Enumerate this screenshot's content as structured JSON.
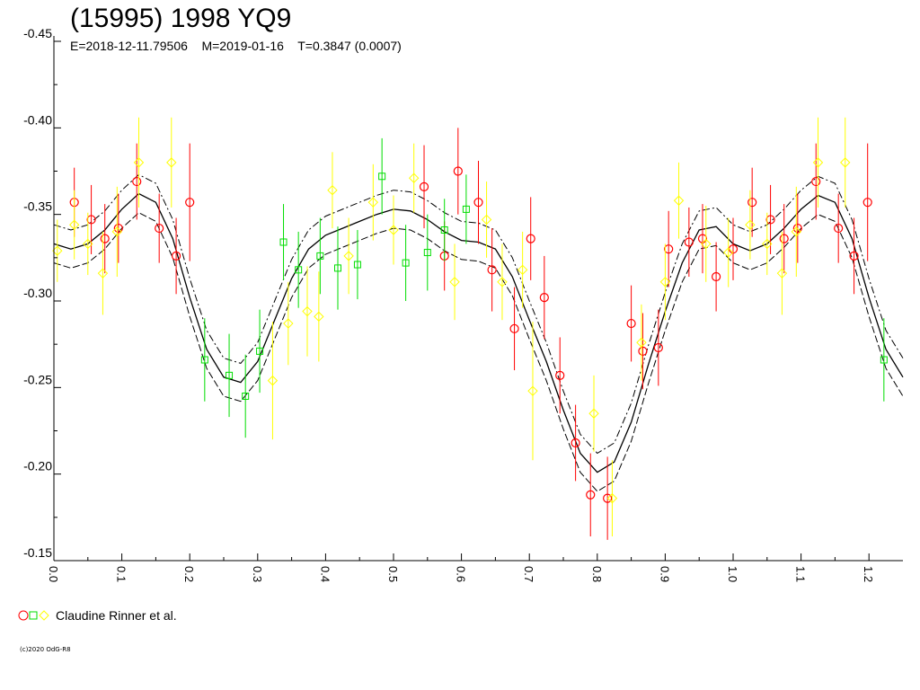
{
  "header": {
    "title": "(15995) 1998 YQ9",
    "subtitle": "E=2018-12-11.79506    M=2019-01-16    T=0.3847 (0.0007)"
  },
  "legend": {
    "label": "Claudine Rinner et al.",
    "symbols": [
      "red-circle-icon",
      "green-square-icon",
      "yellow-diamond-icon"
    ]
  },
  "footer": {
    "copyright": "(c)2020 OdG-R8"
  },
  "colors": {
    "red": "#ff0000",
    "green": "#00dd00",
    "yellow": "#ffff00",
    "axis": "#000000"
  },
  "chart_data": {
    "type": "scatter",
    "xlabel": "",
    "ylabel": "",
    "xlim": [
      0.0,
      1.25
    ],
    "ylim": [
      -0.45,
      -0.15
    ],
    "y_inverted": true,
    "x_ticks": [
      "0.0",
      "0.1",
      "0.2",
      "0.3",
      "0.4",
      "0.5",
      "0.6",
      "0.7",
      "0.8",
      "0.9",
      "1.0",
      "1.1",
      "1.2"
    ],
    "y_ticks": [
      "-0.45",
      "-0.40",
      "-0.35",
      "-0.30",
      "-0.25",
      "-0.20",
      "-0.15"
    ],
    "fit_curve": {
      "x": [
        0.0,
        0.025,
        0.05,
        0.075,
        0.1,
        0.125,
        0.15,
        0.175,
        0.2,
        0.225,
        0.25,
        0.275,
        0.3,
        0.325,
        0.35,
        0.375,
        0.4,
        0.425,
        0.45,
        0.475,
        0.5,
        0.525,
        0.55,
        0.575,
        0.6,
        0.625,
        0.65,
        0.675,
        0.7,
        0.725,
        0.75,
        0.775,
        0.8,
        0.825,
        0.85,
        0.875,
        0.9,
        0.925,
        0.95,
        0.975,
        1.0,
        1.025,
        1.05,
        1.075,
        1.1,
        1.125,
        1.15,
        1.175,
        1.2,
        1.225,
        1.25
      ],
      "y": [
        -0.333,
        -0.33,
        -0.333,
        -0.341,
        -0.353,
        -0.362,
        -0.357,
        -0.336,
        -0.302,
        -0.272,
        -0.256,
        -0.253,
        -0.265,
        -0.289,
        -0.313,
        -0.33,
        -0.338,
        -0.342,
        -0.346,
        -0.35,
        -0.353,
        -0.352,
        -0.347,
        -0.34,
        -0.335,
        -0.334,
        -0.33,
        -0.314,
        -0.289,
        -0.265,
        -0.237,
        -0.212,
        -0.201,
        -0.207,
        -0.23,
        -0.263,
        -0.294,
        -0.322,
        -0.341,
        -0.343,
        -0.333,
        -0.329,
        -0.333,
        -0.342,
        -0.353,
        -0.361,
        -0.357,
        -0.336,
        -0.302,
        -0.272,
        -0.256
      ],
      "band": 0.011
    },
    "series": [
      {
        "name": "",
        "color": "#ff0000",
        "marker": "circle",
        "points": [
          {
            "x": 0.03,
            "y": -0.357,
            "err": 0.02
          },
          {
            "x": 0.055,
            "y": -0.347,
            "err": 0.02
          },
          {
            "x": 0.075,
            "y": -0.336,
            "err": 0.02
          },
          {
            "x": 0.095,
            "y": -0.342,
            "err": 0.02
          },
          {
            "x": 0.122,
            "y": -0.369,
            "err": 0.022
          },
          {
            "x": 0.155,
            "y": -0.342,
            "err": 0.02
          },
          {
            "x": 0.18,
            "y": -0.326,
            "err": 0.022
          },
          {
            "x": 0.2,
            "y": -0.357,
            "err": 0.034
          },
          {
            "x": 0.545,
            "y": -0.366,
            "err": 0.024
          },
          {
            "x": 0.595,
            "y": -0.375,
            "err": 0.025
          },
          {
            "x": 0.575,
            "y": -0.326,
            "err": 0.02
          },
          {
            "x": 0.625,
            "y": -0.357,
            "err": 0.024
          },
          {
            "x": 0.645,
            "y": -0.318,
            "err": 0.024
          },
          {
            "x": 0.678,
            "y": -0.284,
            "err": 0.024
          },
          {
            "x": 0.702,
            "y": -0.336,
            "err": 0.024
          },
          {
            "x": 0.722,
            "y": -0.302,
            "err": 0.024
          },
          {
            "x": 0.745,
            "y": -0.257,
            "err": 0.022
          },
          {
            "x": 0.768,
            "y": -0.218,
            "err": 0.022
          },
          {
            "x": 0.79,
            "y": -0.188,
            "err": 0.024
          },
          {
            "x": 0.815,
            "y": -0.186,
            "err": 0.024
          },
          {
            "x": 0.85,
            "y": -0.287,
            "err": 0.022
          },
          {
            "x": 0.867,
            "y": -0.271,
            "err": 0.022
          },
          {
            "x": 0.89,
            "y": -0.273,
            "err": 0.022
          },
          {
            "x": 0.905,
            "y": -0.33,
            "err": 0.022
          },
          {
            "x": 0.935,
            "y": -0.334,
            "err": 0.02
          },
          {
            "x": 0.955,
            "y": -0.336,
            "err": 0.02
          },
          {
            "x": 0.975,
            "y": -0.314,
            "err": 0.02
          },
          {
            "x": 1.0,
            "y": -0.33,
            "err": 0.018
          },
          {
            "x": 1.028,
            "y": -0.357,
            "err": 0.02
          },
          {
            "x": 1.055,
            "y": -0.347,
            "err": 0.02
          },
          {
            "x": 1.075,
            "y": -0.336,
            "err": 0.02
          },
          {
            "x": 1.095,
            "y": -0.342,
            "err": 0.02
          },
          {
            "x": 1.122,
            "y": -0.369,
            "err": 0.022
          },
          {
            "x": 1.155,
            "y": -0.342,
            "err": 0.02
          },
          {
            "x": 1.178,
            "y": -0.326,
            "err": 0.022
          },
          {
            "x": 1.198,
            "y": -0.357,
            "err": 0.034
          }
        ]
      },
      {
        "name": "",
        "color": "#00dd00",
        "marker": "square",
        "points": [
          {
            "x": 0.222,
            "y": -0.266,
            "err": 0.024
          },
          {
            "x": 0.258,
            "y": -0.257,
            "err": 0.024
          },
          {
            "x": 0.282,
            "y": -0.245,
            "err": 0.024
          },
          {
            "x": 0.303,
            "y": -0.271,
            "err": 0.024
          },
          {
            "x": 0.338,
            "y": -0.334,
            "err": 0.022
          },
          {
            "x": 0.36,
            "y": -0.318,
            "err": 0.022
          },
          {
            "x": 0.392,
            "y": -0.326,
            "err": 0.022
          },
          {
            "x": 0.418,
            "y": -0.319,
            "err": 0.024
          },
          {
            "x": 0.447,
            "y": -0.321,
            "err": 0.02
          },
          {
            "x": 0.483,
            "y": -0.372,
            "err": 0.022
          },
          {
            "x": 0.518,
            "y": -0.322,
            "err": 0.022
          },
          {
            "x": 0.55,
            "y": -0.328,
            "err": 0.022
          },
          {
            "x": 0.575,
            "y": -0.341,
            "err": 0.018
          },
          {
            "x": 0.607,
            "y": -0.353,
            "err": 0.02
          },
          {
            "x": 1.222,
            "y": -0.266,
            "err": 0.024
          }
        ]
      },
      {
        "name": "",
        "color": "#ffff00",
        "marker": "diamond",
        "points": [
          {
            "x": 0.005,
            "y": -0.329,
            "err": 0.018
          },
          {
            "x": 0.03,
            "y": -0.344,
            "err": 0.02
          },
          {
            "x": 0.05,
            "y": -0.333,
            "err": 0.018
          },
          {
            "x": 0.072,
            "y": -0.316,
            "err": 0.024
          },
          {
            "x": 0.093,
            "y": -0.34,
            "err": 0.026
          },
          {
            "x": 0.125,
            "y": -0.38,
            "err": 0.026
          },
          {
            "x": 0.173,
            "y": -0.38,
            "err": 0.026
          },
          {
            "x": 0.322,
            "y": -0.254,
            "err": 0.034
          },
          {
            "x": 0.345,
            "y": -0.287,
            "err": 0.024
          },
          {
            "x": 0.373,
            "y": -0.294,
            "err": 0.026
          },
          {
            "x": 0.39,
            "y": -0.291,
            "err": 0.026
          },
          {
            "x": 0.41,
            "y": -0.364,
            "err": 0.022
          },
          {
            "x": 0.434,
            "y": -0.326,
            "err": 0.022
          },
          {
            "x": 0.47,
            "y": -0.357,
            "err": 0.022
          },
          {
            "x": 0.5,
            "y": -0.341,
            "err": 0.02
          },
          {
            "x": 0.53,
            "y": -0.371,
            "err": 0.02
          },
          {
            "x": 0.59,
            "y": -0.311,
            "err": 0.022
          },
          {
            "x": 0.637,
            "y": -0.347,
            "err": 0.022
          },
          {
            "x": 0.66,
            "y": -0.311,
            "err": 0.022
          },
          {
            "x": 0.69,
            "y": -0.318,
            "err": 0.022
          },
          {
            "x": 0.705,
            "y": -0.248,
            "err": 0.04
          },
          {
            "x": 0.795,
            "y": -0.235,
            "err": 0.022
          },
          {
            "x": 0.822,
            "y": -0.186,
            "err": 0.022
          },
          {
            "x": 0.865,
            "y": -0.276,
            "err": 0.022
          },
          {
            "x": 0.9,
            "y": -0.311,
            "err": 0.022
          },
          {
            "x": 0.92,
            "y": -0.358,
            "err": 0.022
          },
          {
            "x": 0.96,
            "y": -0.333,
            "err": 0.022
          },
          {
            "x": 0.993,
            "y": -0.328,
            "err": 0.02
          },
          {
            "x": 1.025,
            "y": -0.344,
            "err": 0.02
          },
          {
            "x": 1.05,
            "y": -0.333,
            "err": 0.018
          },
          {
            "x": 1.072,
            "y": -0.316,
            "err": 0.024
          },
          {
            "x": 1.093,
            "y": -0.34,
            "err": 0.026
          },
          {
            "x": 1.125,
            "y": -0.38,
            "err": 0.026
          },
          {
            "x": 1.165,
            "y": -0.38,
            "err": 0.026
          }
        ]
      }
    ]
  }
}
